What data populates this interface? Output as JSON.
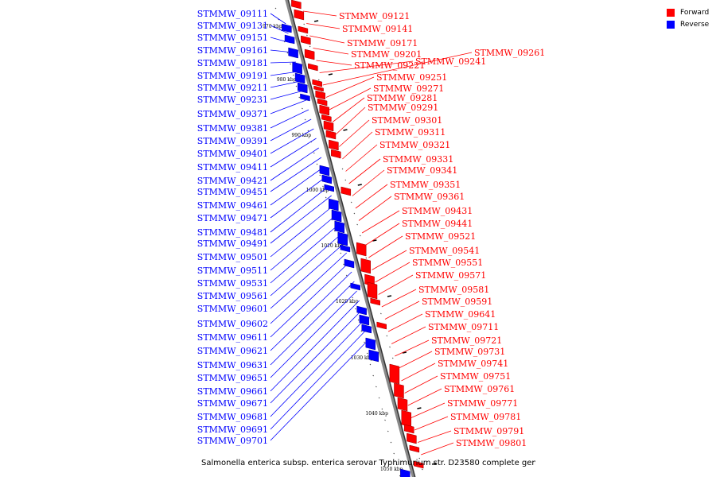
{
  "legend": {
    "forward": {
      "label": "Forward",
      "color": "#ff0000"
    },
    "reverse": {
      "label": "Reverse",
      "color": "#0000ff"
    }
  },
  "caption": "Salmonella enterica subsp. enterica serovar Typhimurium str. D23580 complete gen...",
  "scale": {
    "ticks": [
      "970 kbp",
      "980 kbp",
      "990 kbp",
      "1000 kbp",
      "1010 kbp",
      "1020 kbp",
      "1030 kbp",
      "1040 kbp",
      "1050 kbp"
    ]
  },
  "genes": {
    "reverse": [
      "STMMW_09111",
      "STMMW_09131",
      "STMMW_09151",
      "STMMW_09161",
      "STMMW_09181",
      "STMMW_09191",
      "STMMW_09211",
      "STMMW_09231",
      "STMMW_09371",
      "STMMW_09381",
      "STMMW_09391",
      "STMMW_09401",
      "STMMW_09411",
      "STMMW_09421",
      "STMMW_09451",
      "STMMW_09461",
      "STMMW_09471",
      "STMMW_09481",
      "STMMW_09491",
      "STMMW_09501",
      "STMMW_09511",
      "STMMW_09531",
      "STMMW_09561",
      "STMMW_09601",
      "STMMW_09602",
      "STMMW_09611",
      "STMMW_09621",
      "STMMW_09631",
      "STMMW_09651",
      "STMMW_09661",
      "STMMW_09671",
      "STMMW_09681",
      "STMMW_09691",
      "STMMW_09701"
    ],
    "forward": [
      "STMMW_09121",
      "STMMW_09141",
      "STMMW_09171",
      "STMMW_09201",
      "STMMW_09221",
      "STMMW_09241",
      "STMMW_09261",
      "STMMW_09251",
      "STMMW_09271",
      "STMMW_09281",
      "STMMW_09291",
      "STMMW_09301",
      "STMMW_09311",
      "STMMW_09321",
      "STMMW_09331",
      "STMMW_09341",
      "STMMW_09351",
      "STMMW_09361",
      "STMMW_09431",
      "STMMW_09441",
      "STMMW_09521",
      "STMMW_09541",
      "STMMW_09551",
      "STMMW_09571",
      "STMMW_09581",
      "STMMW_09591",
      "STMMW_09641",
      "STMMW_09711",
      "STMMW_09721",
      "STMMW_09731",
      "STMMW_09741",
      "STMMW_09751",
      "STMMW_09761",
      "STMMW_09771",
      "STMMW_09781",
      "STMMW_09791",
      "STMMW_09801"
    ]
  }
}
